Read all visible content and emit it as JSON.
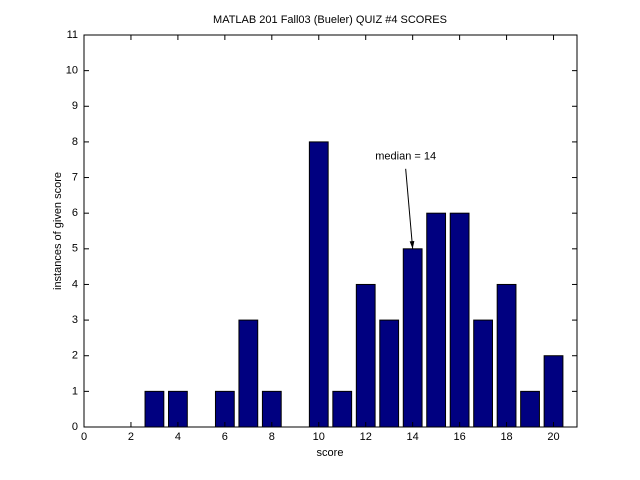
{
  "chart_data": {
    "type": "bar",
    "title": "MATLAB 201 Fall03 (Bueler)    QUIZ #4 SCORES",
    "xlabel": "score",
    "ylabel": "instances of given score",
    "x": [
      3,
      4,
      6,
      7,
      8,
      10,
      11,
      12,
      13,
      14,
      15,
      16,
      17,
      18,
      19,
      20
    ],
    "values": [
      1,
      1,
      1,
      3,
      1,
      8,
      1,
      4,
      3,
      5,
      6,
      6,
      3,
      4,
      1,
      2
    ],
    "color": "#000080",
    "bar_width": 0.8,
    "xlim": [
      0,
      21
    ],
    "xticks": [
      0,
      2,
      4,
      6,
      8,
      10,
      12,
      14,
      16,
      18,
      20
    ],
    "ylim": [
      0,
      11
    ],
    "yticks": [
      0,
      1,
      2,
      3,
      4,
      5,
      6,
      7,
      8,
      9,
      10,
      11
    ],
    "grid": false,
    "annotation": {
      "text": "median = 14",
      "x": 14,
      "y": 5
    }
  }
}
